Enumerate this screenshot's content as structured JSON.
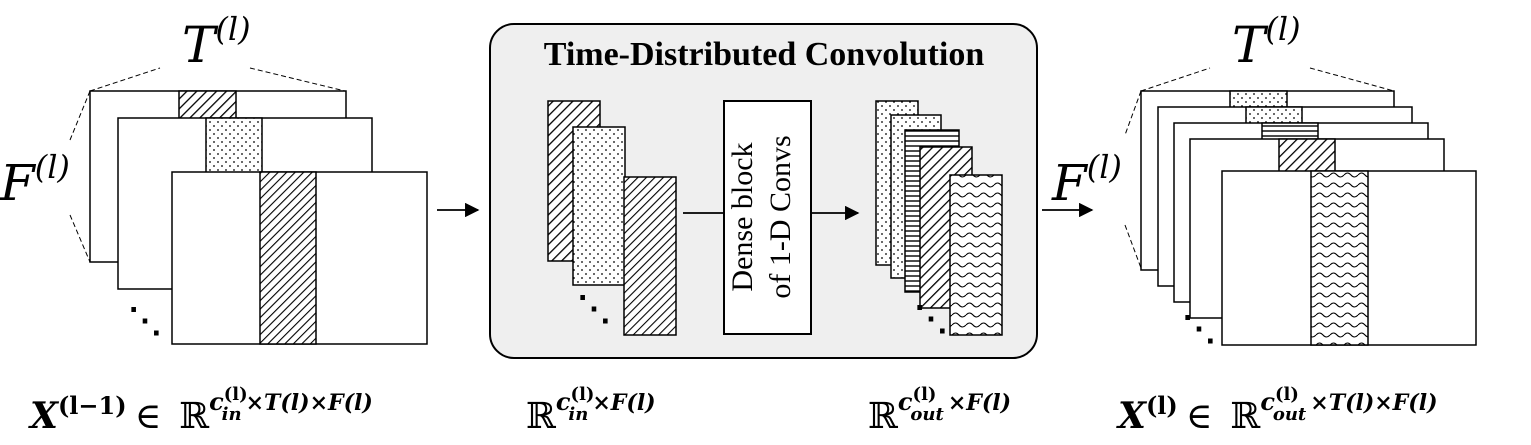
{
  "left_block": {
    "time_label": "T",
    "time_sup": "(l)",
    "freq_label": "F",
    "freq_sup": "(l)",
    "ellipsis": "⋱",
    "formula": {
      "var": "X",
      "var_sup": "(l−1)",
      "member": "∈",
      "field": "ℝ",
      "exp_c": "c",
      "exp_c_sup": "(l)",
      "exp_c_sub": "in",
      "exp_rest": "×T(l)×F(l)"
    }
  },
  "center_block": {
    "title": "Time-Distributed Convolution",
    "dense_line1": "Dense block",
    "dense_line2": "of 1-D Convs",
    "ellipsis_in": "⋱",
    "ellipsis_out": "⋱",
    "formula_in": {
      "field": "ℝ",
      "exp_c": "c",
      "exp_c_sup": "(l)",
      "exp_c_sub": "in",
      "exp_rest": "×F(l)"
    },
    "formula_out": {
      "field": "ℝ",
      "exp_c": "c",
      "exp_c_sup": "(l)",
      "exp_c_sub": "out",
      "exp_rest": "×F(l)"
    }
  },
  "right_block": {
    "time_label": "T",
    "time_sup": "(l)",
    "freq_label": "F",
    "freq_sup": "(l)",
    "ellipsis": "⋱",
    "formula": {
      "var": "X",
      "var_sup": "(l)",
      "member": "∈",
      "field": "ℝ",
      "exp_c": "c",
      "exp_c_sup": "(l)",
      "exp_c_sub": "out",
      "exp_rest": "×T(l)×F(l)"
    }
  }
}
